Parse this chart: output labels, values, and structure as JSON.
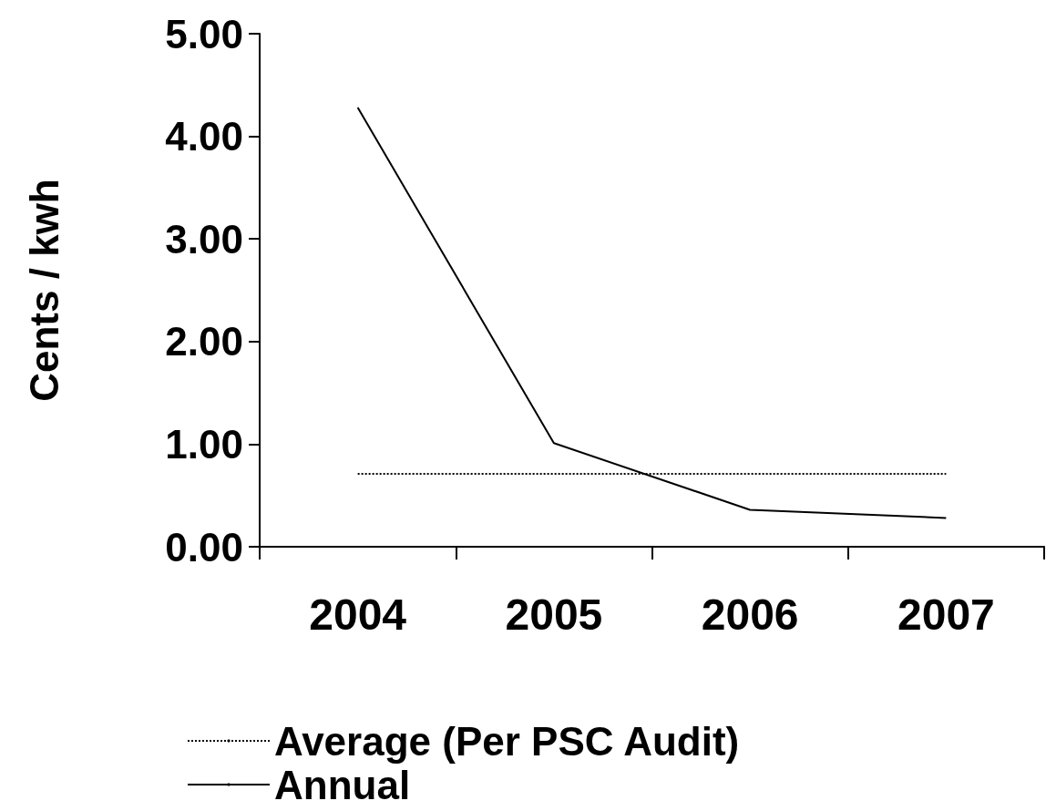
{
  "chart_data": {
    "type": "line",
    "ylabel": "Cents / kwh",
    "categories": [
      "2004",
      "2005",
      "2006",
      "2007"
    ],
    "series": [
      {
        "name": "Average (Per PSC Audit)",
        "color": "#000000",
        "values": [
          0.71,
          0.71,
          0.71,
          0.71
        ],
        "line_style": "dotted"
      },
      {
        "name": "Annual",
        "color": "#000000",
        "values": [
          4.28,
          1.01,
          0.36,
          0.28
        ],
        "line_style": "solid"
      }
    ],
    "ylim": [
      0,
      5
    ],
    "yticks": [
      {
        "value": 0,
        "label": "0.00"
      },
      {
        "value": 1,
        "label": "1.00"
      },
      {
        "value": 2,
        "label": "2.00"
      },
      {
        "value": 3,
        "label": "3.00"
      },
      {
        "value": 4,
        "label": "4.00"
      },
      {
        "value": 5,
        "label": "5.00"
      }
    ],
    "grid": false,
    "legend": "bottom left",
    "marker": "none"
  }
}
